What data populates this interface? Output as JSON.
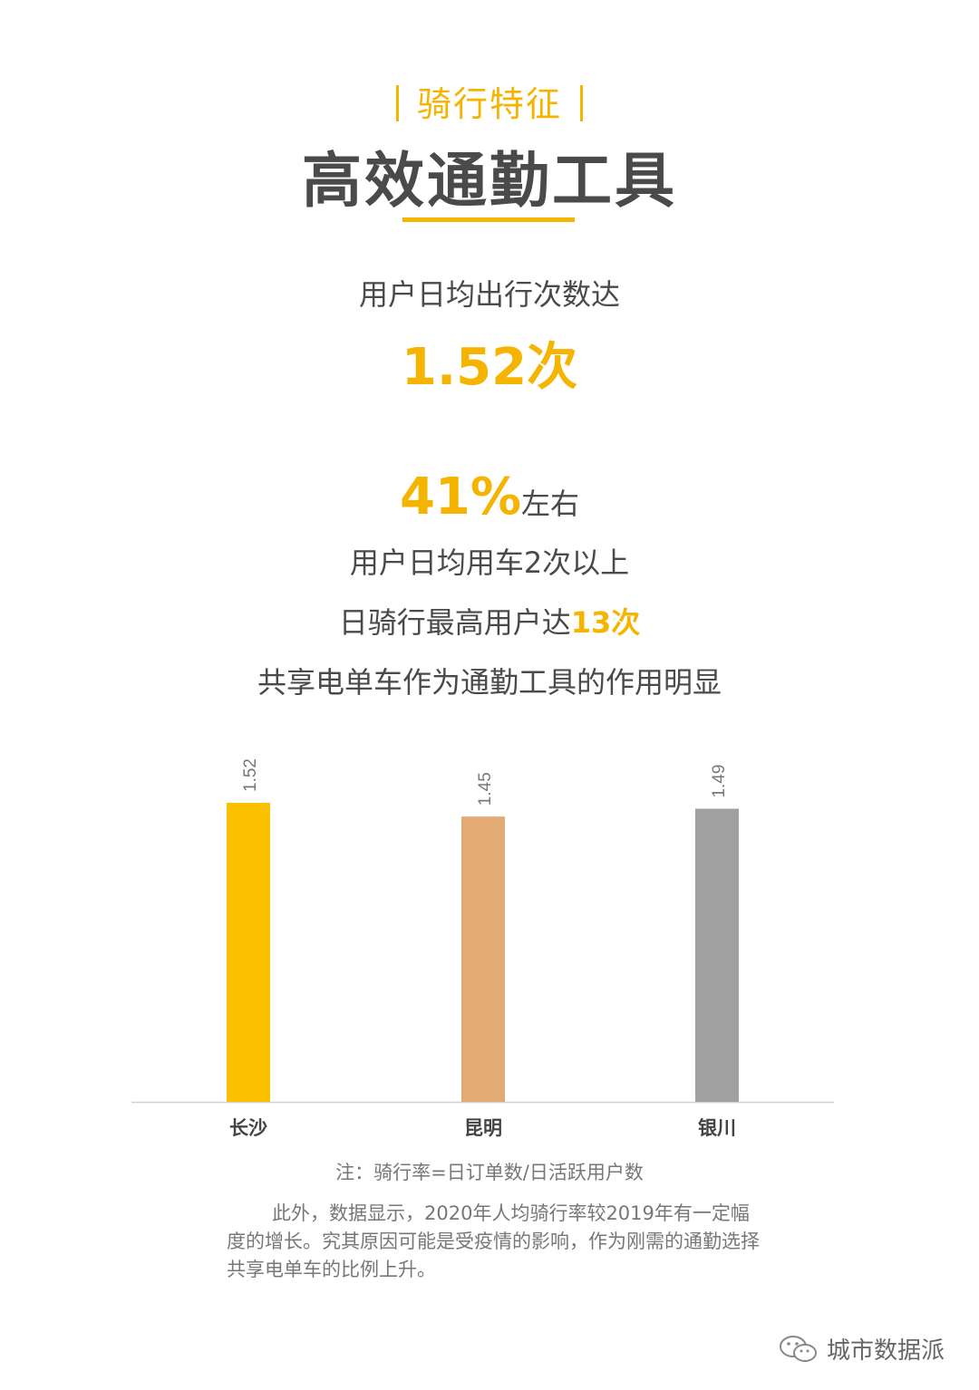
{
  "header": {
    "section_tag": "骑行特征",
    "title": "高效通勤工具"
  },
  "stat1": {
    "label": "用户日均出行次数达",
    "value": "1.52次"
  },
  "stat2": {
    "value": "41%",
    "suffix": "左右",
    "line1": "用户日均用车2次以上",
    "line2_prefix": "日骑行最高用户达",
    "line2_value": "13次",
    "line3": "共享电单车作为通勤工具的作用明显"
  },
  "chart_data": {
    "type": "bar",
    "categories": [
      "长沙",
      "昆明",
      "银川"
    ],
    "values": [
      1.52,
      1.45,
      1.49
    ],
    "value_labels": [
      "1.52",
      "1.45",
      "1.49"
    ],
    "colors": [
      "#fcc000",
      "#e3aa74",
      "#a0a0a0"
    ],
    "title": "",
    "xlabel": "",
    "ylabel": "",
    "ylim": [
      0,
      1.52
    ]
  },
  "note": "注：骑行率=日订单数/日活跃用户数",
  "paragraph": "此外，数据显示，2020年人均骑行率较2019年有一定幅度的增长。究其原因可能是受疫情的影响，作为刚需的通勤选择共享电单车的比例上升。",
  "watermark": {
    "icon": "wechat-icon",
    "text": "城市数据派"
  }
}
